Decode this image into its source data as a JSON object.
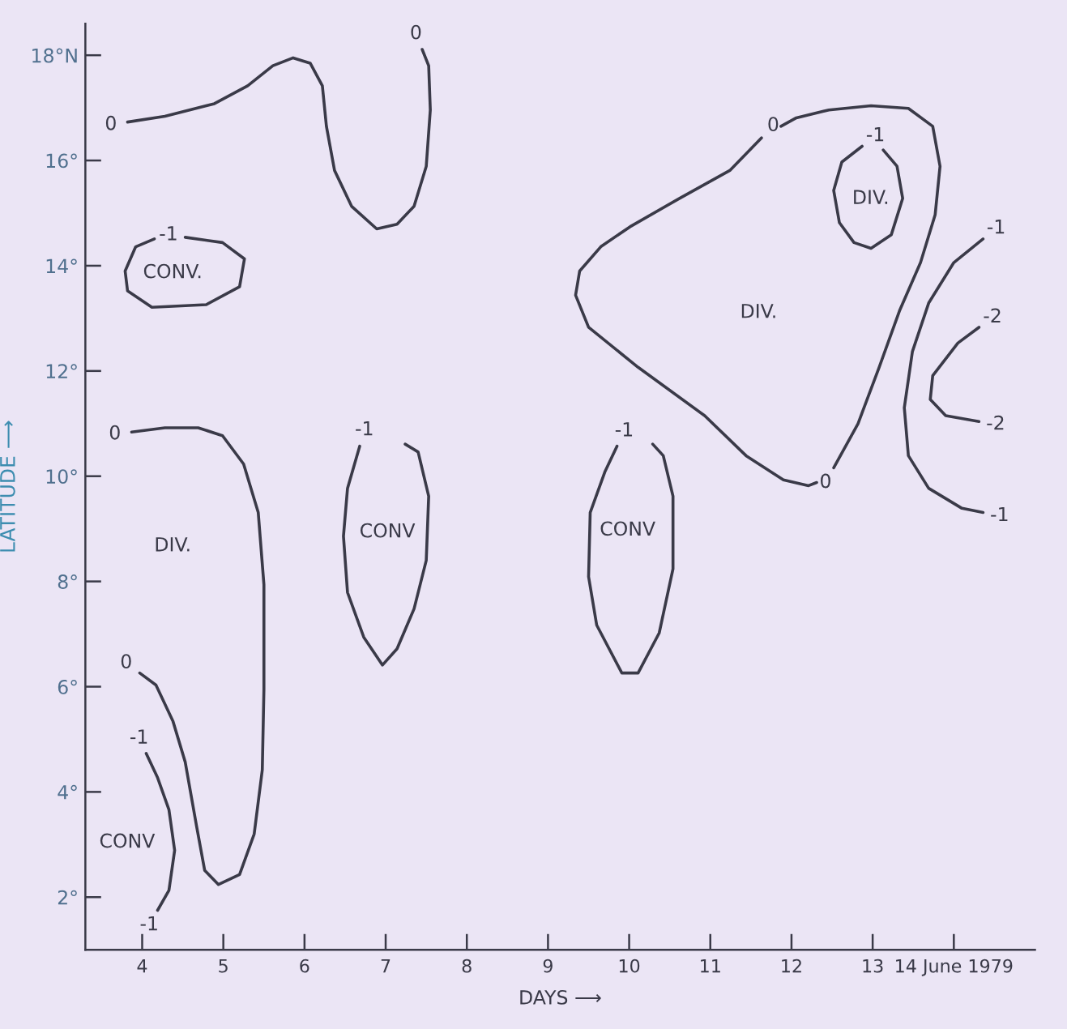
{
  "chart_data": {
    "type": "line",
    "xlabel": "DAYS ⟶",
    "ylabel": "LATITUDE ⟶",
    "xlim": [
      3.3,
      15.0
    ],
    "ylim": [
      1,
      18.6
    ],
    "xticks": [
      4,
      5,
      6,
      7,
      8,
      9,
      10,
      11,
      12,
      13,
      {
        "value": 14,
        "label": "14 June 1979"
      }
    ],
    "yticks": [
      {
        "value": 2,
        "label": "2°"
      },
      {
        "value": 4,
        "label": "4°"
      },
      {
        "value": 6,
        "label": "6°"
      },
      {
        "value": 8,
        "label": "8°"
      },
      {
        "value": 10,
        "label": "10°"
      },
      {
        "value": 12,
        "label": "12°"
      },
      {
        "value": 14,
        "label": "14°"
      },
      {
        "value": 16,
        "label": "16°"
      },
      {
        "value": 18,
        "label": "18°N"
      }
    ],
    "grid": false,
    "legend": false,
    "marker": "none",
    "line_style": "solid",
    "series": [
      {
        "name": "0",
        "color": "#3a3a48",
        "x": [
          3.82,
          4.28,
          4.89,
          5.3,
          5.61,
          5.86,
          6.07,
          6.22,
          6.27,
          6.37,
          6.58,
          6.89,
          7.14,
          7.35,
          7.5,
          7.55,
          7.53,
          7.45
        ],
        "values": [
          16.73,
          16.84,
          17.08,
          17.42,
          17.8,
          17.95,
          17.85,
          17.42,
          16.65,
          15.81,
          15.13,
          14.7,
          14.79,
          15.13,
          15.89,
          16.96,
          17.8,
          18.11
        ]
      },
      {
        "name": "-1",
        "color": "#3a3a48",
        "x": [
          4.53,
          4.99,
          5.26,
          5.2,
          4.79,
          4.12,
          3.82,
          3.79,
          3.92,
          4.15
        ],
        "values": [
          14.54,
          14.44,
          14.13,
          13.6,
          13.26,
          13.21,
          13.52,
          13.9,
          14.36,
          14.51
        ]
      },
      {
        "name": "0",
        "color": "#3a3a48",
        "x": [
          3.87,
          4.28,
          4.69,
          4.99,
          5.25,
          5.43,
          5.5,
          5.5,
          5.48,
          5.38,
          5.2,
          4.94,
          4.77,
          4.67,
          4.53,
          4.38,
          4.17,
          3.97
        ],
        "values": [
          10.84,
          10.92,
          10.92,
          10.77,
          10.23,
          9.31,
          7.94,
          5.95,
          4.42,
          3.2,
          2.43,
          2.24,
          2.51,
          3.35,
          4.57,
          5.34,
          6.03,
          6.26
        ]
      },
      {
        "name": "-1",
        "color": "#3a3a48",
        "x": [
          4.05,
          4.19,
          4.33,
          4.4,
          4.33,
          4.19
        ],
        "values": [
          4.73,
          4.27,
          3.66,
          2.89,
          2.13,
          1.75
        ]
      },
      {
        "name": "-1",
        "color": "#3a3a48",
        "x": [
          6.68,
          6.53,
          6.48,
          6.53,
          6.73,
          6.96,
          7.14,
          7.35,
          7.5,
          7.53,
          7.4,
          7.24
        ],
        "values": [
          10.57,
          9.77,
          8.86,
          7.79,
          6.94,
          6.41,
          6.72,
          7.48,
          8.4,
          9.62,
          10.46,
          10.61
        ]
      },
      {
        "name": "-1",
        "color": "#3a3a48",
        "x": [
          9.85,
          9.7,
          9.52,
          9.5,
          9.6,
          9.91,
          10.11,
          10.37,
          10.54,
          10.54,
          10.42,
          10.29
        ],
        "values": [
          10.57,
          10.08,
          9.31,
          8.09,
          7.17,
          6.26,
          6.26,
          7.02,
          8.24,
          9.62,
          10.39,
          10.61
        ]
      },
      {
        "name": "0",
        "color": "#3a3a48",
        "x": [
          12.52,
          12.82,
          13.08,
          13.33,
          13.59,
          13.77,
          13.83,
          13.74,
          13.44,
          12.98,
          12.46,
          12.06,
          11.87,
          null,
          11.63,
          11.24,
          10.62,
          10.01,
          9.65,
          9.39,
          9.34,
          9.5,
          10.11,
          10.93,
          11.44,
          11.9,
          12.21,
          12.31
        ],
        "values": [
          10.16,
          11.0,
          12.07,
          13.14,
          14.06,
          14.97,
          15.89,
          16.65,
          16.99,
          17.04,
          16.96,
          16.81,
          16.65,
          null,
          16.43,
          15.81,
          15.28,
          14.74,
          14.36,
          13.9,
          13.44,
          12.83,
          12.07,
          11.15,
          10.39,
          9.93,
          9.82,
          9.88
        ]
      },
      {
        "name": "-1",
        "color": "#3a3a48",
        "x": [
          12.87,
          12.62,
          12.52,
          12.59,
          12.77,
          12.98,
          13.23,
          13.37,
          13.3,
          13.13
        ],
        "values": [
          16.27,
          15.97,
          15.43,
          14.82,
          14.44,
          14.33,
          14.59,
          15.28,
          15.89,
          16.2
        ]
      },
      {
        "name": "-1",
        "color": "#3a3a48",
        "x": [
          14.36,
          14.0,
          13.69,
          13.49,
          13.39,
          13.44,
          13.69,
          14.1,
          14.36
        ],
        "values": [
          14.51,
          14.06,
          13.29,
          12.37,
          11.3,
          10.39,
          9.77,
          9.39,
          9.31
        ]
      },
      {
        "name": "-2",
        "color": "#3a3a48",
        "x": [
          14.31,
          14.05,
          13.74,
          13.71,
          13.9,
          14.31
        ],
        "values": [
          12.83,
          12.53,
          11.91,
          11.46,
          11.15,
          11.04
        ]
      }
    ],
    "annotations": [
      "CONV.",
      "DIV.",
      "CONV",
      "CONV",
      "CONV",
      "DIV.",
      "DIV."
    ]
  }
}
